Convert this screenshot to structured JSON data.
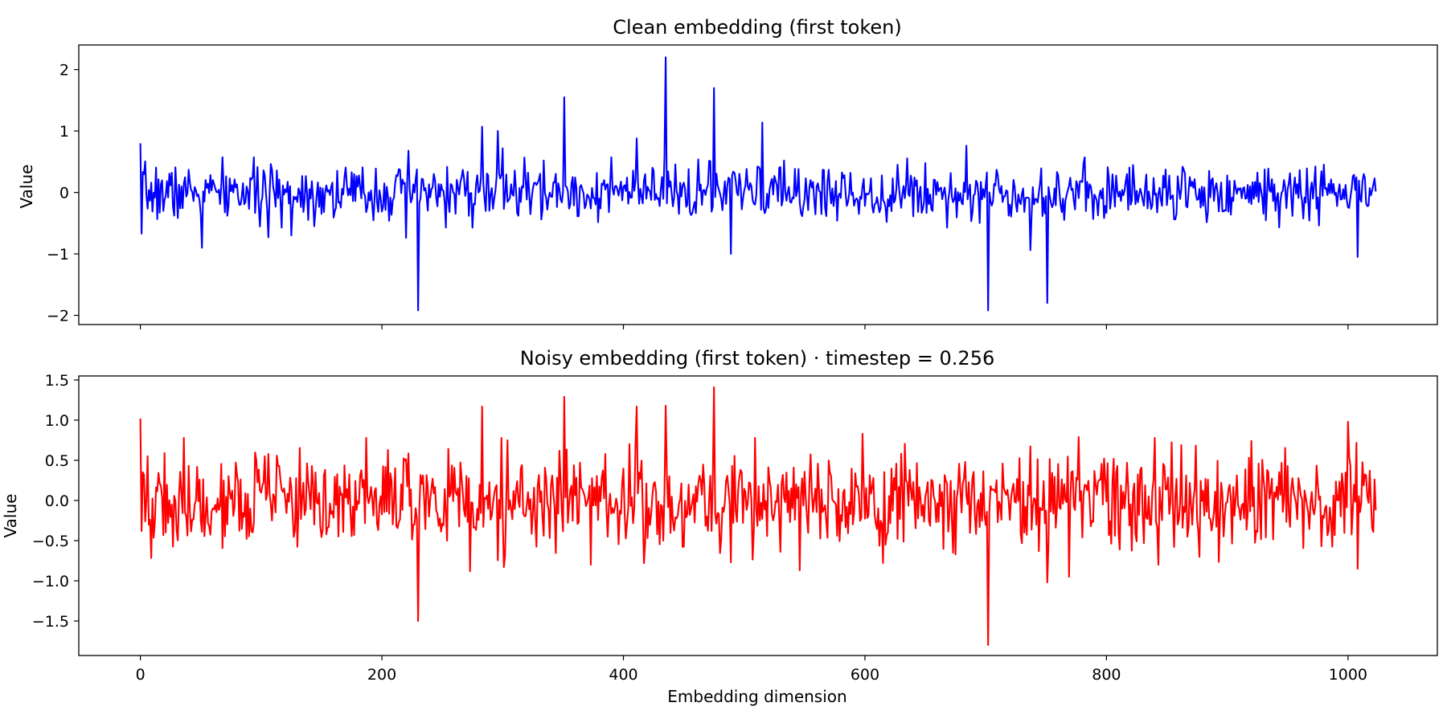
{
  "chart_data": [
    {
      "type": "line",
      "title": "Clean embedding (first token)",
      "xlabel": "",
      "ylabel": "Value",
      "xlim": [
        -51,
        1074
      ],
      "ylim": [
        -2.15,
        2.4
      ],
      "xticks": [
        0,
        200,
        400,
        600,
        800,
        1000
      ],
      "xtick_labels": [
        "",
        "",
        "",
        "",
        "",
        ""
      ],
      "yticks": [
        2,
        1,
        0,
        -1,
        -2
      ],
      "ytick_labels": [
        "2",
        "1",
        "0",
        "−1",
        "−2"
      ],
      "grid": false,
      "series": [
        {
          "color": "#0000ff",
          "n_points": 1024,
          "baseline_std": 0.22,
          "seed": 7,
          "spikes": [
            [
              0,
              0.8
            ],
            [
              1,
              -0.67
            ],
            [
              51,
              -0.9
            ],
            [
              106,
              -0.73
            ],
            [
              125,
              -0.7
            ],
            [
              220,
              -0.74
            ],
            [
              222,
              0.68
            ],
            [
              230,
              -1.92
            ],
            [
              283,
              1.07
            ],
            [
              296,
              1.0
            ],
            [
              300,
              0.72
            ],
            [
              351,
              1.55
            ],
            [
              411,
              0.88
            ],
            [
              435,
              2.2
            ],
            [
              475,
              1.7
            ],
            [
              489,
              -1.0
            ],
            [
              515,
              1.14
            ],
            [
              684,
              0.76
            ],
            [
              702,
              -1.92
            ],
            [
              737,
              -0.94
            ],
            [
              751,
              -1.8
            ],
            [
              1008,
              -1.05
            ]
          ]
        }
      ]
    },
    {
      "type": "line",
      "title": "Noisy embedding (first token) · timestep = 0.256",
      "xlabel": "Embedding dimension",
      "ylabel": "Value",
      "xlim": [
        -51,
        1074
      ],
      "ylim": [
        -1.93,
        1.55
      ],
      "xticks": [
        0,
        200,
        400,
        600,
        800,
        1000
      ],
      "xtick_labels": [
        "0",
        "200",
        "400",
        "600",
        "800",
        "1000"
      ],
      "yticks": [
        1.5,
        1.0,
        0.5,
        0.0,
        -0.5,
        -1.0,
        -1.5
      ],
      "ytick_labels": [
        "1.5",
        "1.0",
        "0.5",
        "0.0",
        "−0.5",
        "−1.0",
        "−1.5"
      ],
      "grid": false,
      "series": [
        {
          "color": "#ff0000",
          "n_points": 1024,
          "baseline_std": 0.3,
          "seed": 19,
          "spikes": [
            [
              0,
              1.02
            ],
            [
              1,
              -0.38
            ],
            [
              230,
              -1.5
            ],
            [
              273,
              -0.88
            ],
            [
              283,
              1.17
            ],
            [
              301,
              -0.83
            ],
            [
              351,
              1.29
            ],
            [
              373,
              -0.8
            ],
            [
              411,
              1.17
            ],
            [
              417,
              -0.78
            ],
            [
              435,
              1.18
            ],
            [
              475,
              1.41
            ],
            [
              489,
              -0.77
            ],
            [
              546,
              -0.87
            ],
            [
              598,
              0.83
            ],
            [
              702,
              -1.8
            ],
            [
              751,
              -1.02
            ],
            [
              769,
              -0.95
            ],
            [
              777,
              0.79
            ],
            [
              843,
              -0.8
            ],
            [
              1000,
              0.98
            ],
            [
              1008,
              -0.85
            ]
          ]
        }
      ]
    }
  ]
}
